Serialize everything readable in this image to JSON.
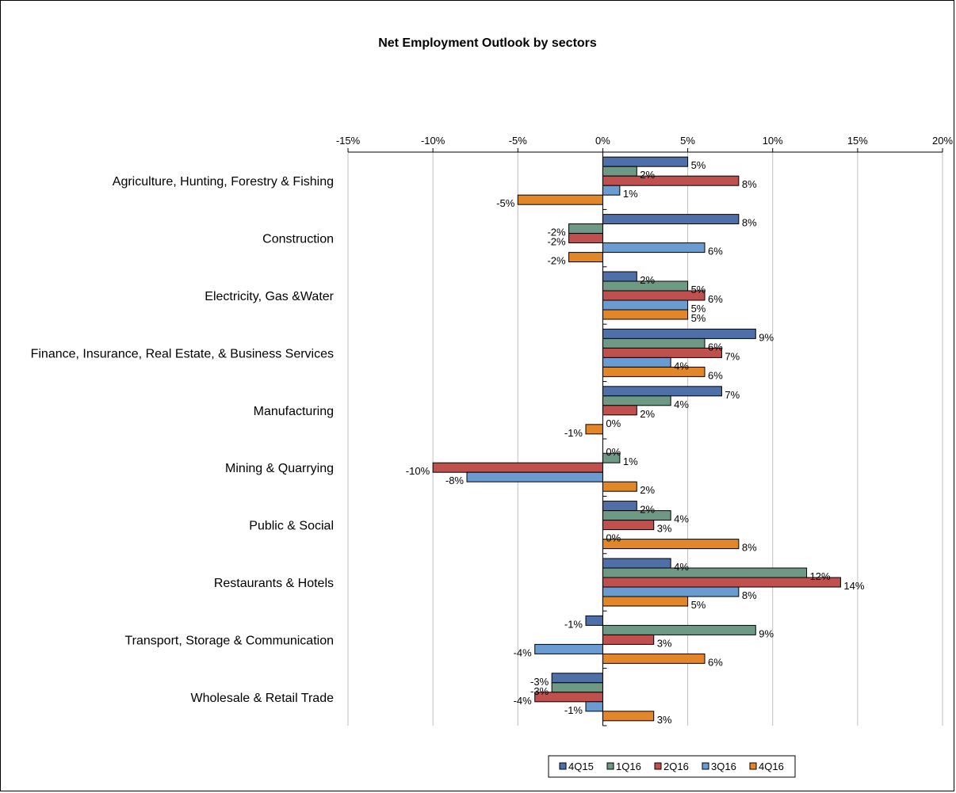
{
  "chart_data": {
    "type": "bar",
    "orientation": "horizontal",
    "title": "Net Employment Outlook by sectors",
    "xlabel": "",
    "ylabel": "",
    "xlim": [
      -0.15,
      0.2
    ],
    "x_ticks": [
      -0.15,
      -0.1,
      -0.05,
      0,
      0.05,
      0.1,
      0.15,
      0.2
    ],
    "x_tick_labels": [
      "-15%",
      "-10%",
      "-5%",
      "0%",
      "5%",
      "10%",
      "15%",
      "20%"
    ],
    "grid": "vertical",
    "legend_position": "bottom",
    "categories": [
      "Agriculture, Hunting, Forestry & Fishing",
      "Construction",
      "Electricity, Gas &Water",
      "Finance, Insurance,  Real Estate, & Business Services",
      "Manufacturing",
      "Mining & Quarrying",
      "Public & Social",
      "Restaurants & Hotels",
      "Transport, Storage & Communication",
      "Wholesale & Retail Trade"
    ],
    "series": [
      {
        "name": "4Q15",
        "color": "#4F6FA8",
        "values": [
          0.05,
          0.08,
          0.02,
          0.09,
          0.07,
          0.0,
          0.02,
          0.04,
          -0.01,
          -0.03
        ],
        "labels": [
          "5%",
          "8%",
          "2%",
          "9%",
          "7%",
          "0%",
          "2%",
          "4%",
          "-1%",
          "-3%"
        ]
      },
      {
        "name": "1Q16",
        "color": "#6E9A85",
        "values": [
          0.02,
          -0.02,
          0.05,
          0.06,
          0.04,
          0.01,
          0.04,
          0.12,
          0.09,
          -0.03
        ],
        "labels": [
          "2%",
          "-2%",
          "5%",
          "6%",
          "4%",
          "1%",
          "4%",
          "12%",
          "9%",
          "-3%"
        ]
      },
      {
        "name": "2Q16",
        "color": "#C0504D",
        "values": [
          0.08,
          -0.02,
          0.06,
          0.07,
          0.02,
          -0.1,
          0.03,
          0.14,
          0.03,
          -0.04
        ],
        "labels": [
          "8%",
          "-2%",
          "6%",
          "7%",
          "2%",
          "-10%",
          "3%",
          "14%",
          "3%",
          "-4%"
        ]
      },
      {
        "name": "3Q16",
        "color": "#6A9BD1",
        "values": [
          0.01,
          0.06,
          0.05,
          0.04,
          0.0,
          -0.08,
          0.0,
          0.08,
          -0.04,
          -0.01
        ],
        "labels": [
          "1%",
          "6%",
          "5%",
          "4%",
          "0%",
          "-8%",
          "0%",
          "8%",
          "-4%",
          "-1%"
        ]
      },
      {
        "name": "4Q16",
        "color": "#E2862A",
        "values": [
          -0.05,
          -0.02,
          0.05,
          0.06,
          -0.01,
          0.02,
          0.08,
          0.05,
          0.06,
          0.03
        ],
        "labels": [
          "-5%",
          "-2%",
          "5%",
          "6%",
          "-1%",
          "2%",
          "8%",
          "5%",
          "6%",
          "3%"
        ]
      }
    ]
  }
}
